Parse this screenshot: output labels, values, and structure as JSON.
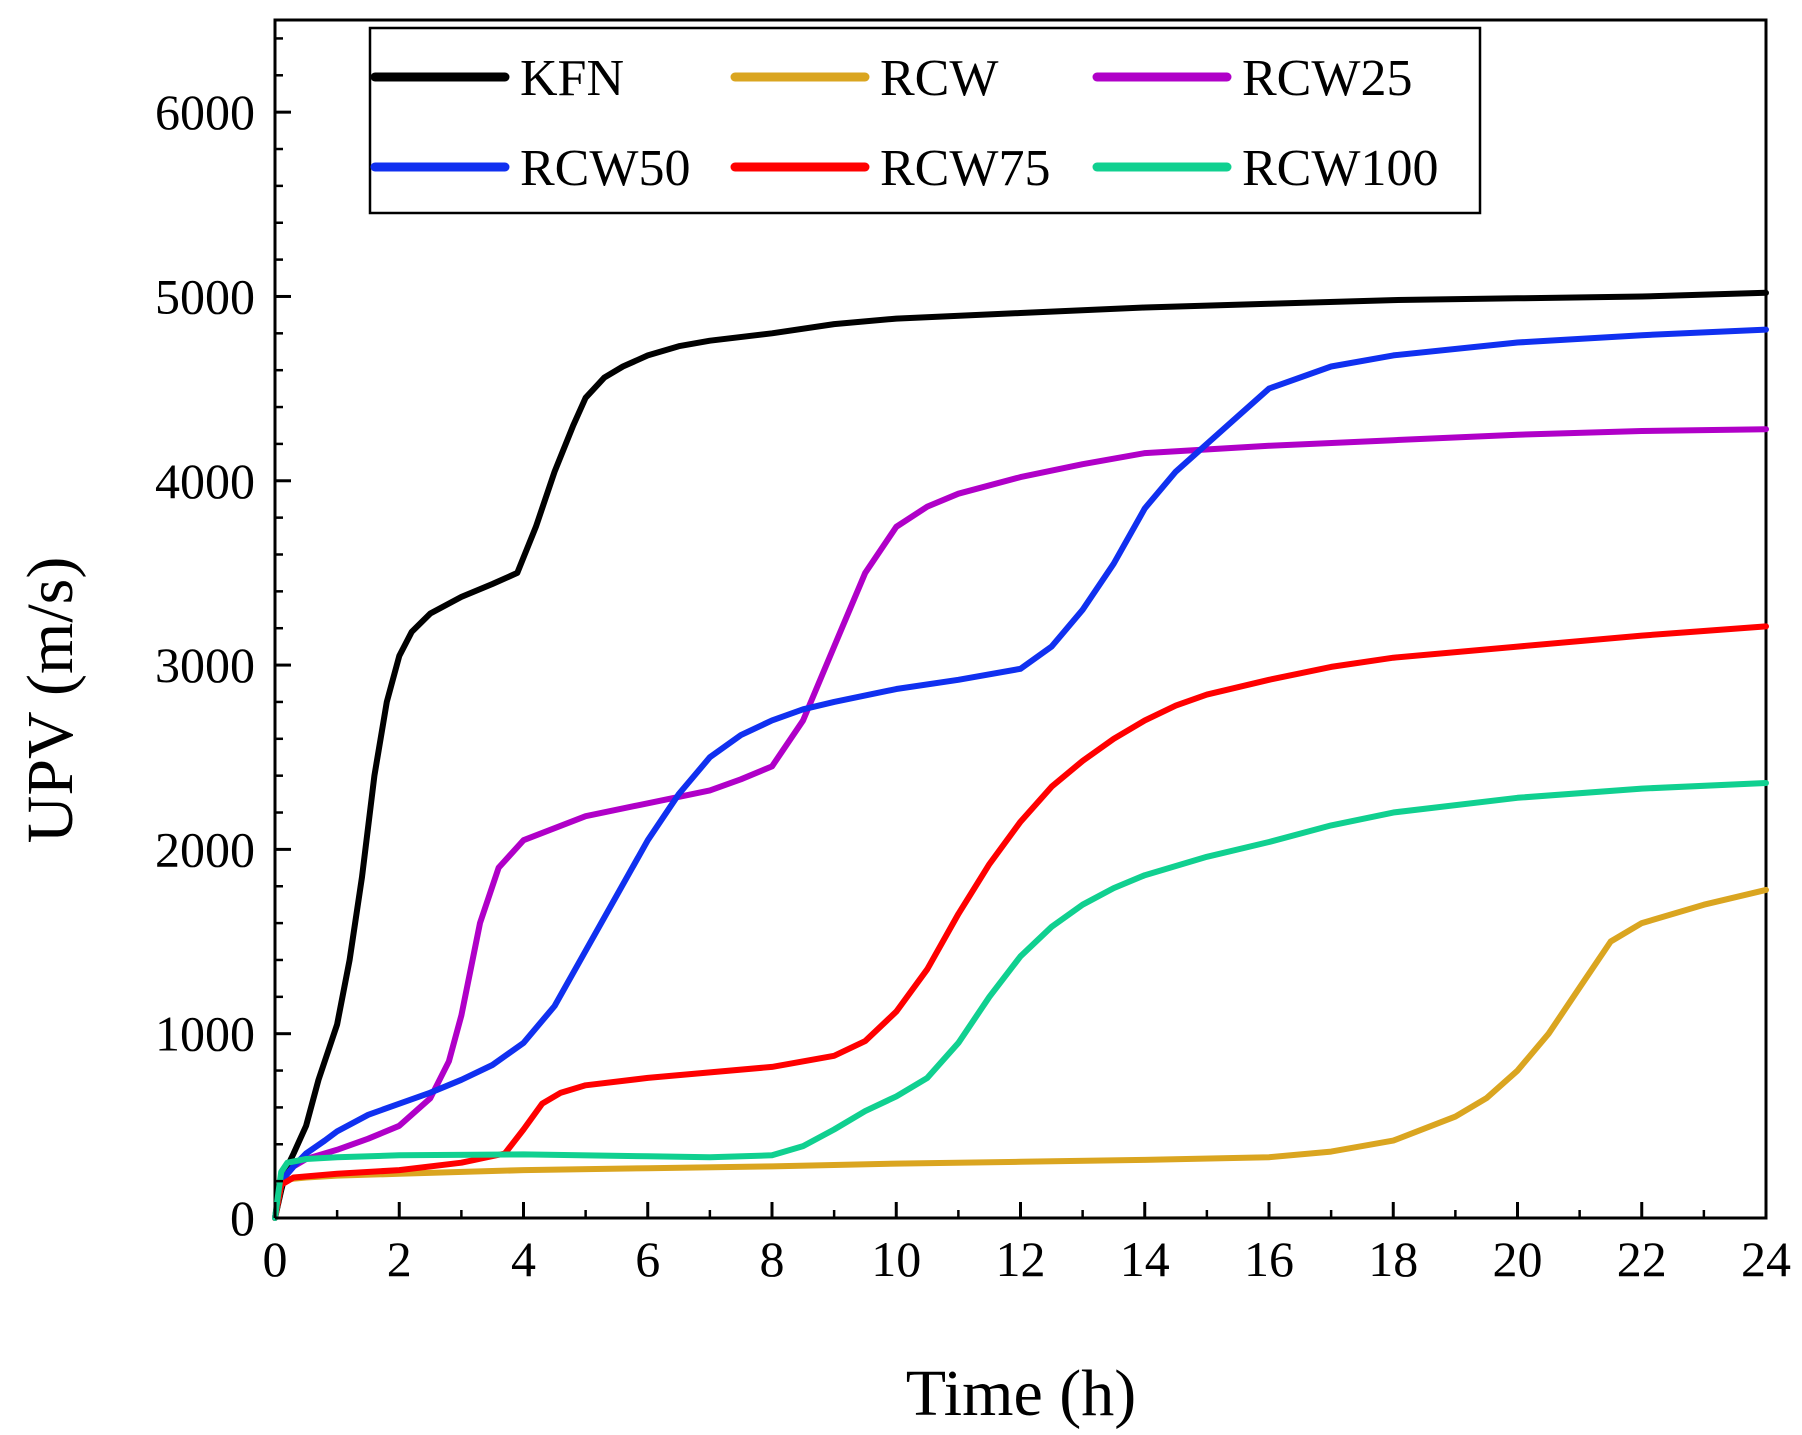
{
  "chart_data": {
    "type": "line",
    "title": "",
    "xlabel": "Time (h)",
    "ylabel": "UPV (m/s)",
    "xlim": [
      0,
      24
    ],
    "ylim": [
      0,
      6500
    ],
    "x_ticks": [
      0,
      2,
      4,
      6,
      8,
      10,
      12,
      14,
      16,
      18,
      20,
      22,
      24
    ],
    "y_ticks": [
      0,
      1000,
      2000,
      3000,
      4000,
      5000,
      6000
    ],
    "x_tick_labels": [
      "0",
      "2",
      "4",
      "6",
      "8",
      "10",
      "12",
      "14",
      "16",
      "18",
      "20",
      "22",
      "24"
    ],
    "y_tick_labels": [
      "0",
      "1000",
      "2000",
      "3000",
      "4000",
      "5000",
      "6000"
    ],
    "grid": false,
    "legend_position": "top",
    "series": [
      {
        "name": "KFN",
        "color": "#000000",
        "x": [
          0.0,
          0.1,
          0.2,
          0.3,
          0.5,
          0.7,
          1.0,
          1.2,
          1.4,
          1.6,
          1.8,
          2.0,
          2.2,
          2.5,
          3.0,
          3.5,
          3.9,
          4.2,
          4.5,
          4.8,
          5.0,
          5.3,
          5.6,
          6.0,
          6.5,
          7.0,
          8.0,
          9.0,
          10.0,
          12.0,
          14.0,
          16.0,
          18.0,
          20.0,
          22.0,
          24.0
        ],
        "y": [
          0,
          150,
          280,
          350,
          500,
          750,
          1050,
          1400,
          1850,
          2400,
          2800,
          3050,
          3180,
          3280,
          3370,
          3440,
          3500,
          3750,
          4050,
          4300,
          4450,
          4560,
          4620,
          4680,
          4730,
          4760,
          4800,
          4850,
          4880,
          4910,
          4940,
          4960,
          4980,
          4990,
          5000,
          5020
        ]
      },
      {
        "name": "RCW",
        "color": "#DAA520",
        "x": [
          0.0,
          0.1,
          0.2,
          0.5,
          1.0,
          2.0,
          4.0,
          6.0,
          8.0,
          10.0,
          12.0,
          14.0,
          16.0,
          17.0,
          18.0,
          19.0,
          19.5,
          20.0,
          20.5,
          21.0,
          21.5,
          22.0,
          23.0,
          24.0
        ],
        "y": [
          0,
          180,
          210,
          220,
          230,
          240,
          260,
          270,
          280,
          295,
          305,
          315,
          330,
          360,
          420,
          550,
          650,
          800,
          1000,
          1250,
          1500,
          1600,
          1700,
          1780
        ]
      },
      {
        "name": "RCW25",
        "color": "#B000C8",
        "x": [
          0.0,
          0.1,
          0.3,
          0.5,
          1.0,
          1.5,
          2.0,
          2.5,
          2.8,
          3.0,
          3.3,
          3.6,
          4.0,
          5.0,
          6.0,
          7.0,
          7.5,
          8.0,
          8.5,
          9.0,
          9.5,
          10.0,
          10.5,
          11.0,
          12.0,
          13.0,
          14.0,
          16.0,
          18.0,
          20.0,
          22.0,
          24.0
        ],
        "y": [
          0,
          200,
          280,
          320,
          370,
          430,
          500,
          650,
          850,
          1100,
          1600,
          1900,
          2050,
          2180,
          2250,
          2320,
          2380,
          2450,
          2700,
          3100,
          3500,
          3750,
          3860,
          3930,
          4020,
          4090,
          4150,
          4190,
          4220,
          4250,
          4270,
          4280
        ]
      },
      {
        "name": "RCW50",
        "color": "#1030F0",
        "x": [
          0.0,
          0.1,
          0.3,
          0.5,
          0.8,
          1.0,
          1.5,
          2.0,
          2.5,
          3.0,
          3.5,
          4.0,
          4.5,
          5.0,
          5.5,
          6.0,
          6.5,
          7.0,
          7.5,
          8.0,
          8.5,
          9.0,
          10.0,
          11.0,
          12.0,
          12.5,
          13.0,
          13.5,
          14.0,
          14.5,
          15.0,
          15.5,
          16.0,
          17.0,
          18.0,
          20.0,
          22.0,
          24.0
        ],
        "y": [
          0,
          200,
          280,
          350,
          420,
          470,
          560,
          620,
          680,
          750,
          830,
          950,
          1150,
          1450,
          1750,
          2050,
          2300,
          2500,
          2620,
          2700,
          2760,
          2800,
          2870,
          2920,
          2980,
          3100,
          3300,
          3550,
          3850,
          4050,
          4200,
          4350,
          4500,
          4620,
          4680,
          4750,
          4790,
          4820
        ]
      },
      {
        "name": "RCW75",
        "color": "#FF0000",
        "x": [
          0.0,
          0.1,
          0.3,
          1.0,
          2.0,
          3.0,
          3.7,
          4.0,
          4.3,
          4.6,
          5.0,
          6.0,
          7.0,
          8.0,
          9.0,
          9.5,
          10.0,
          10.5,
          11.0,
          11.5,
          12.0,
          12.5,
          13.0,
          13.5,
          14.0,
          14.5,
          15.0,
          16.0,
          17.0,
          18.0,
          20.0,
          22.0,
          24.0
        ],
        "y": [
          0,
          180,
          220,
          240,
          260,
          300,
          350,
          480,
          620,
          680,
          720,
          760,
          790,
          820,
          880,
          960,
          1120,
          1350,
          1650,
          1920,
          2150,
          2340,
          2480,
          2600,
          2700,
          2780,
          2840,
          2920,
          2990,
          3040,
          3100,
          3160,
          3210
        ]
      },
      {
        "name": "RCW100",
        "color": "#10D090",
        "x": [
          0.0,
          0.1,
          0.2,
          0.5,
          1.0,
          2.0,
          4.0,
          6.0,
          7.0,
          8.0,
          8.5,
          9.0,
          9.5,
          10.0,
          10.5,
          11.0,
          11.5,
          12.0,
          12.5,
          13.0,
          13.5,
          14.0,
          15.0,
          16.0,
          17.0,
          18.0,
          20.0,
          22.0,
          24.0
        ],
        "y": [
          0,
          250,
          300,
          320,
          330,
          340,
          345,
          335,
          330,
          340,
          390,
          480,
          580,
          660,
          760,
          950,
          1200,
          1420,
          1580,
          1700,
          1790,
          1860,
          1960,
          2040,
          2130,
          2200,
          2280,
          2330,
          2360
        ]
      }
    ]
  }
}
